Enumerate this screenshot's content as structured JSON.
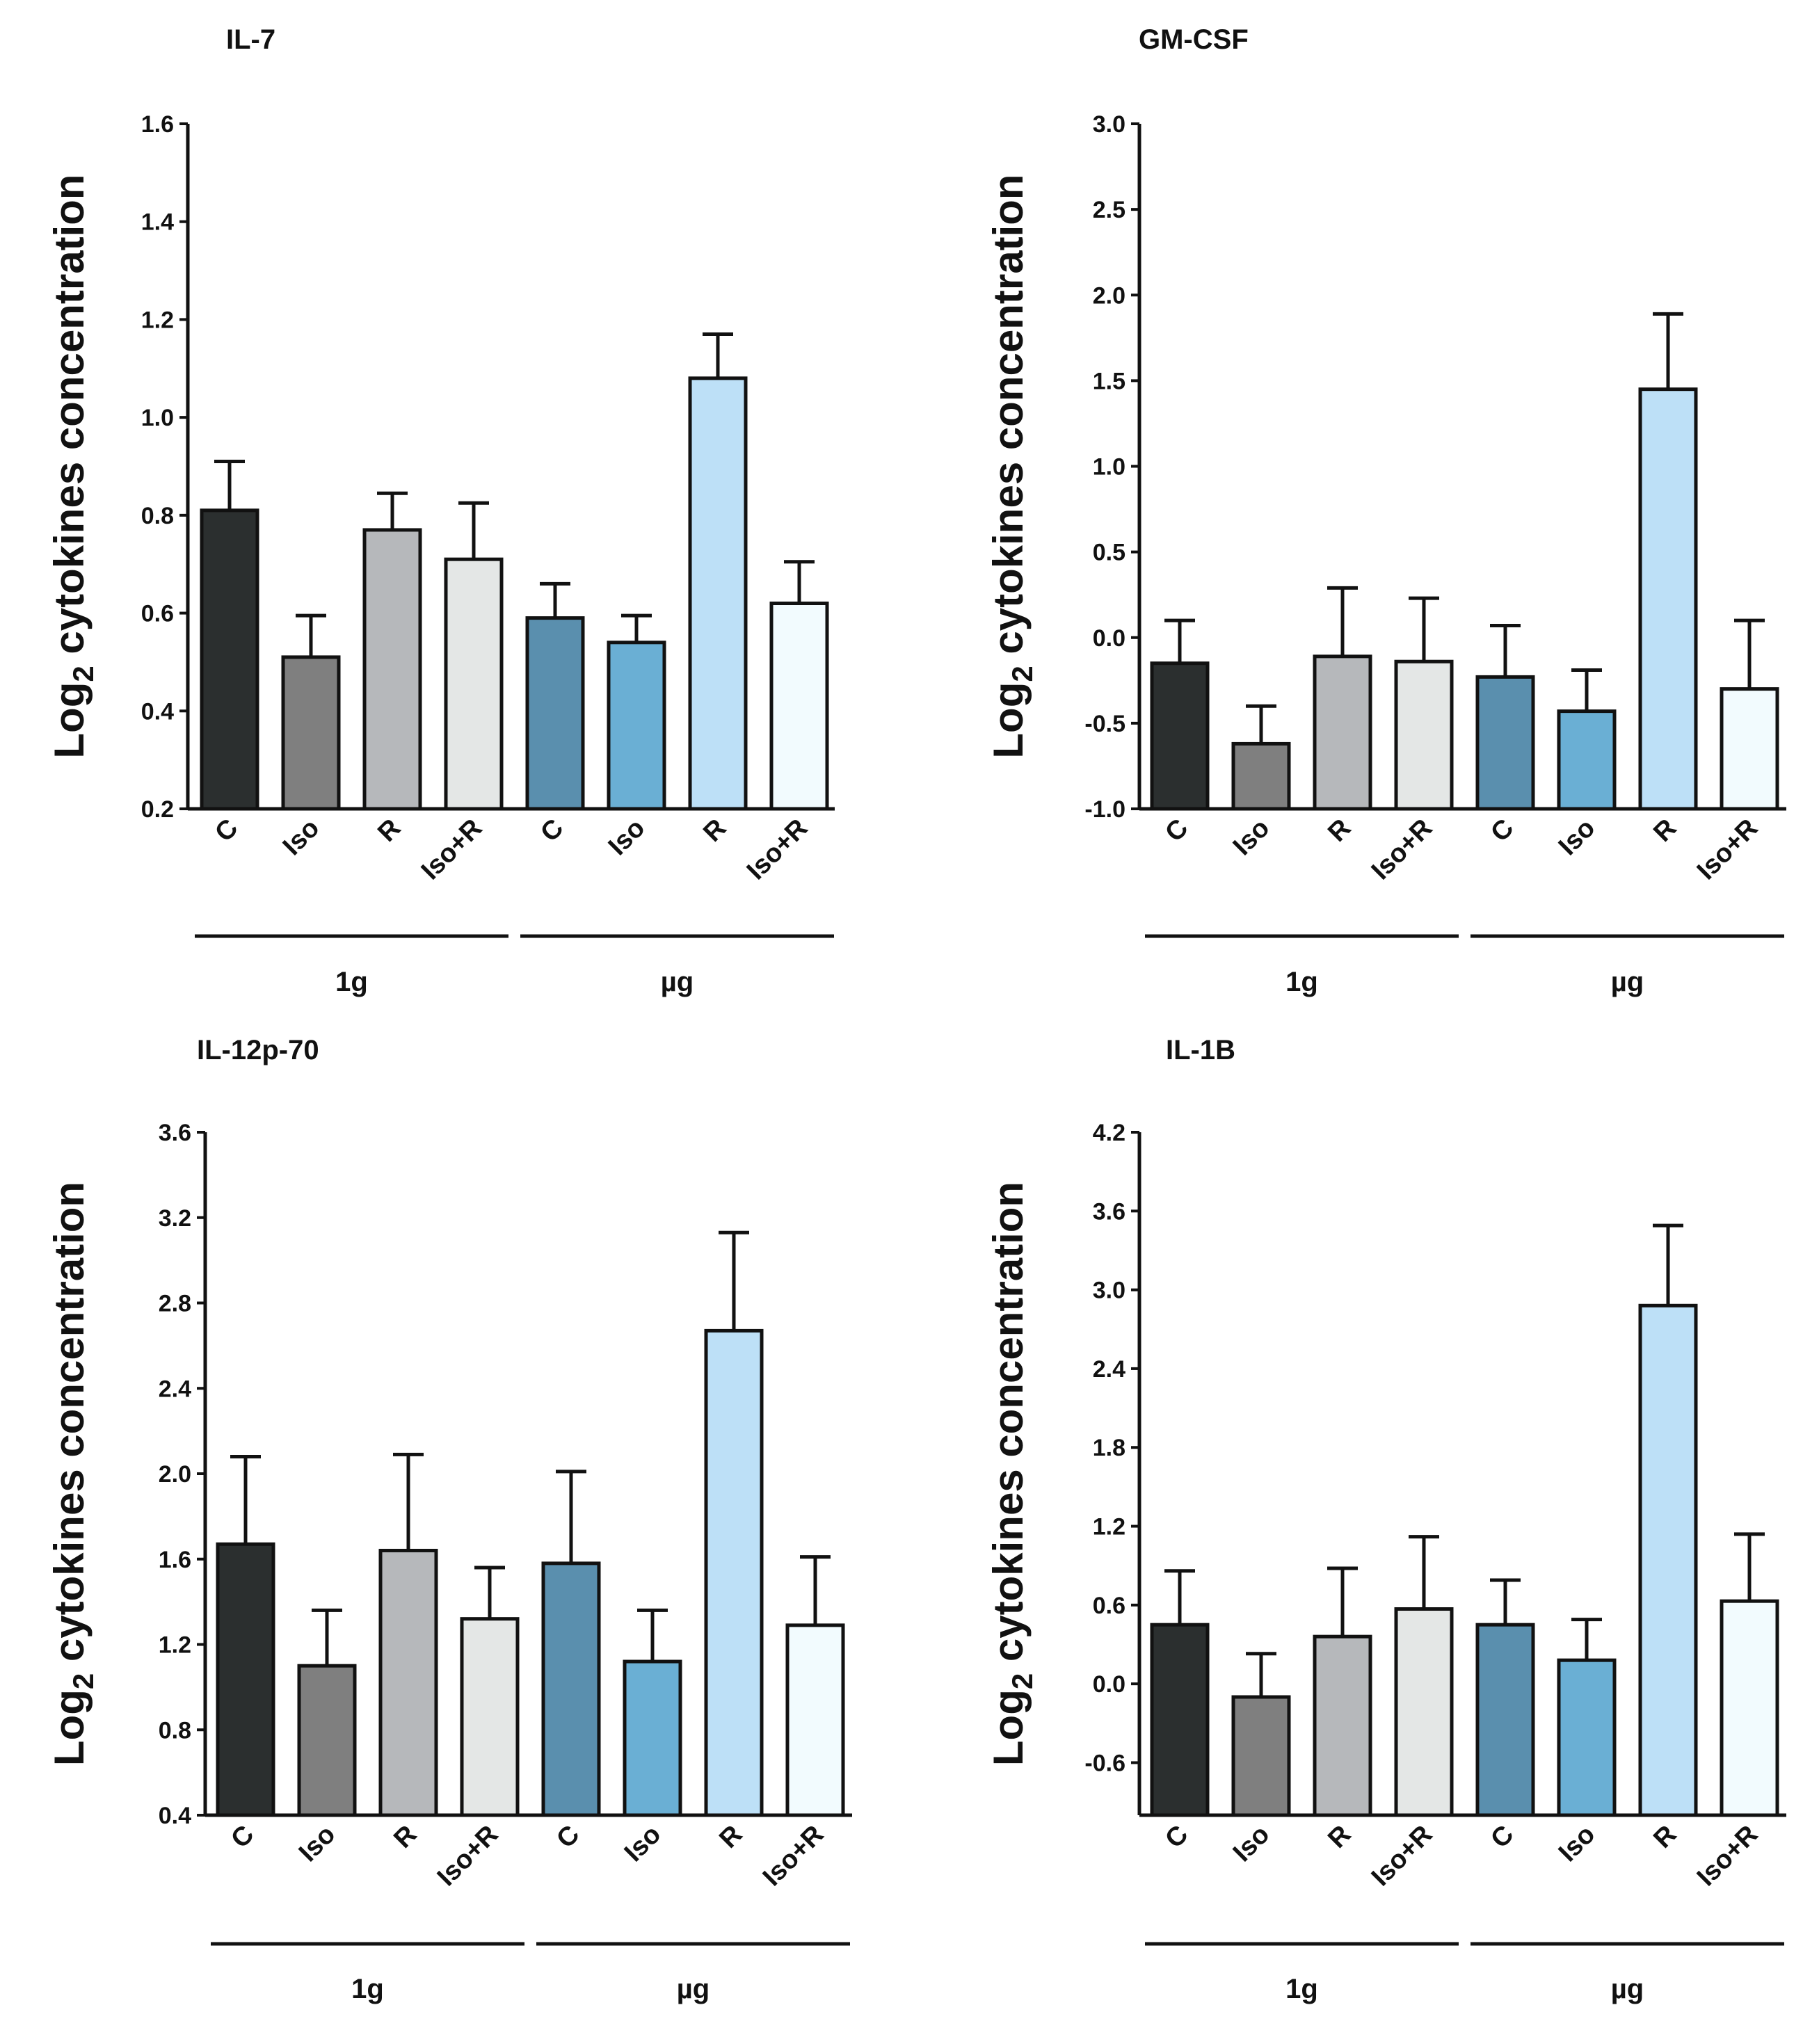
{
  "ylabel_main": "Log",
  "ylabel_sub": "2",
  "ylabel_rest": " cytokines concentration",
  "bar_colors": [
    "#2b2f2f",
    "#7f7f7f",
    "#b6b8bb",
    "#e4e7e6",
    "#5a8fae",
    "#6aafd4",
    "#bde0f7",
    "#f2fbfe"
  ],
  "chart_data": [
    {
      "type": "bar",
      "title": "IL-7",
      "ylabel": "Log2 cytokines concentration",
      "ylim": [
        0.2,
        1.6
      ],
      "yticks": [
        "0.2",
        "0.4",
        "0.6",
        "0.8",
        "1.0",
        "1.2",
        "1.4",
        "1.6"
      ],
      "categories": [
        "C",
        "Iso",
        "R",
        "Iso+R",
        "C",
        "Iso",
        "R",
        "Iso+R"
      ],
      "groups": [
        "1g",
        "µg"
      ],
      "values": [
        0.81,
        0.51,
        0.77,
        0.71,
        0.59,
        0.54,
        1.08,
        0.62
      ],
      "errors": [
        0.1,
        0.085,
        0.075,
        0.115,
        0.07,
        0.055,
        0.09,
        0.085
      ]
    },
    {
      "type": "bar",
      "title": "GM-CSF",
      "ylabel": "Log2 cytokines concentration",
      "ylim": [
        -1.0,
        3.0
      ],
      "yticks": [
        "-1.0",
        "-0.5",
        "0.0",
        "0.5",
        "1.0",
        "1.5",
        "2.0",
        "2.5",
        "3.0"
      ],
      "categories": [
        "C",
        "Iso",
        "R",
        "Iso+R",
        "C",
        "Iso",
        "R",
        "Iso+R"
      ],
      "groups": [
        "1g",
        "µg"
      ],
      "values": [
        -0.15,
        -0.62,
        -0.11,
        -0.14,
        -0.23,
        -0.43,
        1.45,
        -0.3
      ],
      "errors": [
        0.25,
        0.22,
        0.4,
        0.37,
        0.3,
        0.24,
        0.44,
        0.4
      ]
    },
    {
      "type": "bar",
      "title": "IL-12p-70",
      "ylabel": "Log2 cytokines concentration",
      "ylim": [
        0.4,
        3.6
      ],
      "yticks": [
        "0.4",
        "0.8",
        "1.2",
        "1.6",
        "2.0",
        "2.4",
        "2.8",
        "3.2",
        "3.6"
      ],
      "categories": [
        "C",
        "Iso",
        "R",
        "Iso+R",
        "C",
        "Iso",
        "R",
        "Iso+R"
      ],
      "groups": [
        "1g",
        "µg"
      ],
      "values": [
        1.67,
        1.1,
        1.64,
        1.32,
        1.58,
        1.12,
        2.67,
        1.29
      ],
      "errors": [
        0.41,
        0.26,
        0.45,
        0.24,
        0.43,
        0.24,
        0.46,
        0.32
      ]
    },
    {
      "type": "bar",
      "title": "IL-1B",
      "ylabel": "Log2 cytokines concentration",
      "ylim": [
        -1.0,
        4.2
      ],
      "yticks": [
        "-0.6",
        "0.0",
        "0.6",
        "1.2",
        "1.8",
        "2.4",
        "3.0",
        "3.6",
        "4.2"
      ],
      "categories": [
        "C",
        "Iso",
        "R",
        "Iso+R",
        "C",
        "Iso",
        "R",
        "Iso+R"
      ],
      "groups": [
        "1g",
        "µg"
      ],
      "values": [
        0.45,
        -0.1,
        0.36,
        0.57,
        0.45,
        0.18,
        2.88,
        0.63
      ],
      "errors": [
        0.41,
        0.33,
        0.52,
        0.55,
        0.34,
        0.31,
        0.61,
        0.51
      ]
    }
  ]
}
